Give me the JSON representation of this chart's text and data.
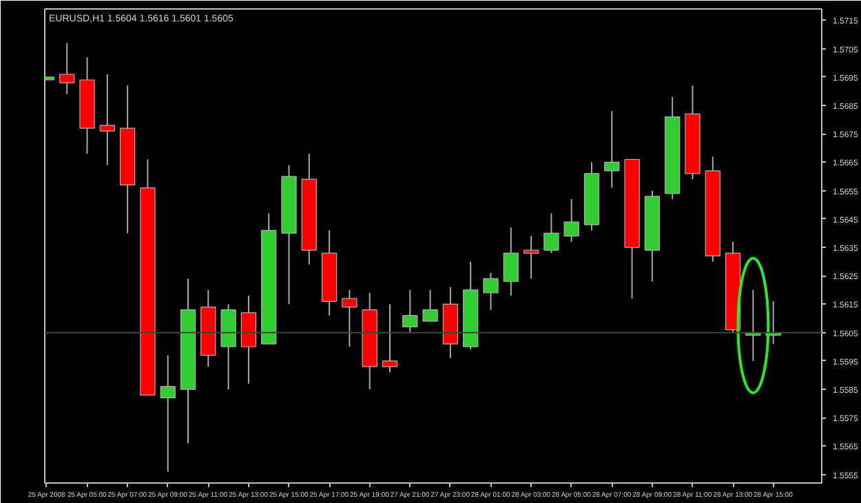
{
  "chart_data": {
    "type": "candlestick",
    "title": "EURUSD,H1  1.5604 1.5616 1.5601 1.5605",
    "categories": [
      "25 Apr 2008",
      null,
      "25 Apr 05:00",
      null,
      "25 Apr 07:00",
      null,
      "25 Apr 09:00",
      null,
      "25 Apr 11:00",
      null,
      "25 Apr 13:00",
      null,
      "25 Apr 15:00",
      null,
      "25 Apr 17:00",
      null,
      "25 Apr 19:00",
      null,
      "27 Apr 21:00",
      null,
      "27 Apr 23:00",
      null,
      "28 Apr 01:00",
      null,
      "28 Apr 03:00",
      null,
      "28 Apr 05:00",
      null,
      "28 Apr 07:00",
      null,
      "28 Apr 09:00",
      null,
      "28 Apr 11:00",
      null,
      "28 Apr 13:00",
      null,
      "28 Apr 15:00"
    ],
    "ohlc": [
      [
        1.5694,
        1.5695,
        1.5694,
        1.5695
      ],
      [
        1.5696,
        1.5707,
        1.5689,
        1.5693
      ],
      [
        1.5694,
        1.5702,
        1.5668,
        1.5677
      ],
      [
        1.5678,
        1.5696,
        1.5664,
        1.5676
      ],
      [
        1.5677,
        1.5692,
        1.564,
        1.5657
      ],
      [
        1.5656,
        1.5666,
        1.5583,
        1.5583
      ],
      [
        1.5582,
        1.5597,
        1.5556,
        1.5586
      ],
      [
        1.5585,
        1.5624,
        1.5566,
        1.5613
      ],
      [
        1.5614,
        1.562,
        1.5593,
        1.5597
      ],
      [
        1.56,
        1.5615,
        1.5585,
        1.5613
      ],
      [
        1.5612,
        1.5618,
        1.5587,
        1.56
      ],
      [
        1.5601,
        1.5647,
        1.5601,
        1.5641
      ],
      [
        1.564,
        1.5664,
        1.5615,
        1.566
      ],
      [
        1.5659,
        1.5668,
        1.5629,
        1.5634
      ],
      [
        1.5633,
        1.5641,
        1.5611,
        1.5616
      ],
      [
        1.5617,
        1.562,
        1.56,
        1.5614
      ],
      [
        1.5613,
        1.5619,
        1.5585,
        1.5593
      ],
      [
        1.5595,
        1.5615,
        1.5591,
        1.5593
      ],
      [
        1.5607,
        1.562,
        1.5605,
        1.5611
      ],
      [
        1.5609,
        1.562,
        1.5609,
        1.5613
      ],
      [
        1.5615,
        1.5621,
        1.5596,
        1.5601
      ],
      [
        1.56,
        1.563,
        1.5599,
        1.562
      ],
      [
        1.5619,
        1.5626,
        1.5613,
        1.5624
      ],
      [
        1.5623,
        1.5642,
        1.5618,
        1.5633
      ],
      [
        1.5634,
        1.5639,
        1.5624,
        1.5633
      ],
      [
        1.5634,
        1.5647,
        1.5633,
        1.564
      ],
      [
        1.5639,
        1.5652,
        1.5637,
        1.5644
      ],
      [
        1.5643,
        1.5665,
        1.5641,
        1.5661
      ],
      [
        1.5662,
        1.5683,
        1.5656,
        1.5665
      ],
      [
        1.5666,
        1.5666,
        1.5617,
        1.5635
      ],
      [
        1.5634,
        1.5655,
        1.5623,
        1.5653
      ],
      [
        1.5654,
        1.5688,
        1.5652,
        1.5681
      ],
      [
        1.5682,
        1.5692,
        1.5659,
        1.5661
      ],
      [
        1.5662,
        1.5667,
        1.563,
        1.5632
      ],
      [
        1.5633,
        1.5637,
        1.5605,
        1.5606
      ],
      [
        1.5604,
        1.562,
        1.5595,
        1.5605
      ],
      [
        1.5604,
        1.5616,
        1.5601,
        1.5605
      ]
    ],
    "colors": [
      "#32cd32",
      "#ff0000",
      "#ff0000",
      "#ff0000",
      "#ff0000",
      "#ff0000",
      "#32cd32",
      "#32cd32",
      "#ff0000",
      "#32cd32",
      "#ff0000",
      "#32cd32",
      "#32cd32",
      "#ff0000",
      "#ff0000",
      "#ff0000",
      "#ff0000",
      "#ff0000",
      "#32cd32",
      "#32cd32",
      "#ff0000",
      "#32cd32",
      "#32cd32",
      "#32cd32",
      "#ff0000",
      "#32cd32",
      "#32cd32",
      "#32cd32",
      "#32cd32",
      "#ff0000",
      "#32cd32",
      "#32cd32",
      "#ff0000",
      "#ff0000",
      "#ff0000",
      "#32cd32",
      "#32cd32"
    ],
    "ylim": [
      1.5552,
      1.5719
    ],
    "yticks": [
      1.5555,
      1.5565,
      1.5575,
      1.5585,
      1.5595,
      {
        "value": 1.5605,
        "label": null
      },
      1.5615,
      1.5625,
      1.5635,
      1.5645,
      1.5655,
      1.5665,
      1.5675,
      1.5685,
      1.5695,
      1.5705,
      1.5715
    ],
    "ref_lines": [
      {
        "axis": "y",
        "value": 1.5605,
        "label": "1.5605",
        "color": "#3a4a3a"
      }
    ],
    "grid": false
  }
}
